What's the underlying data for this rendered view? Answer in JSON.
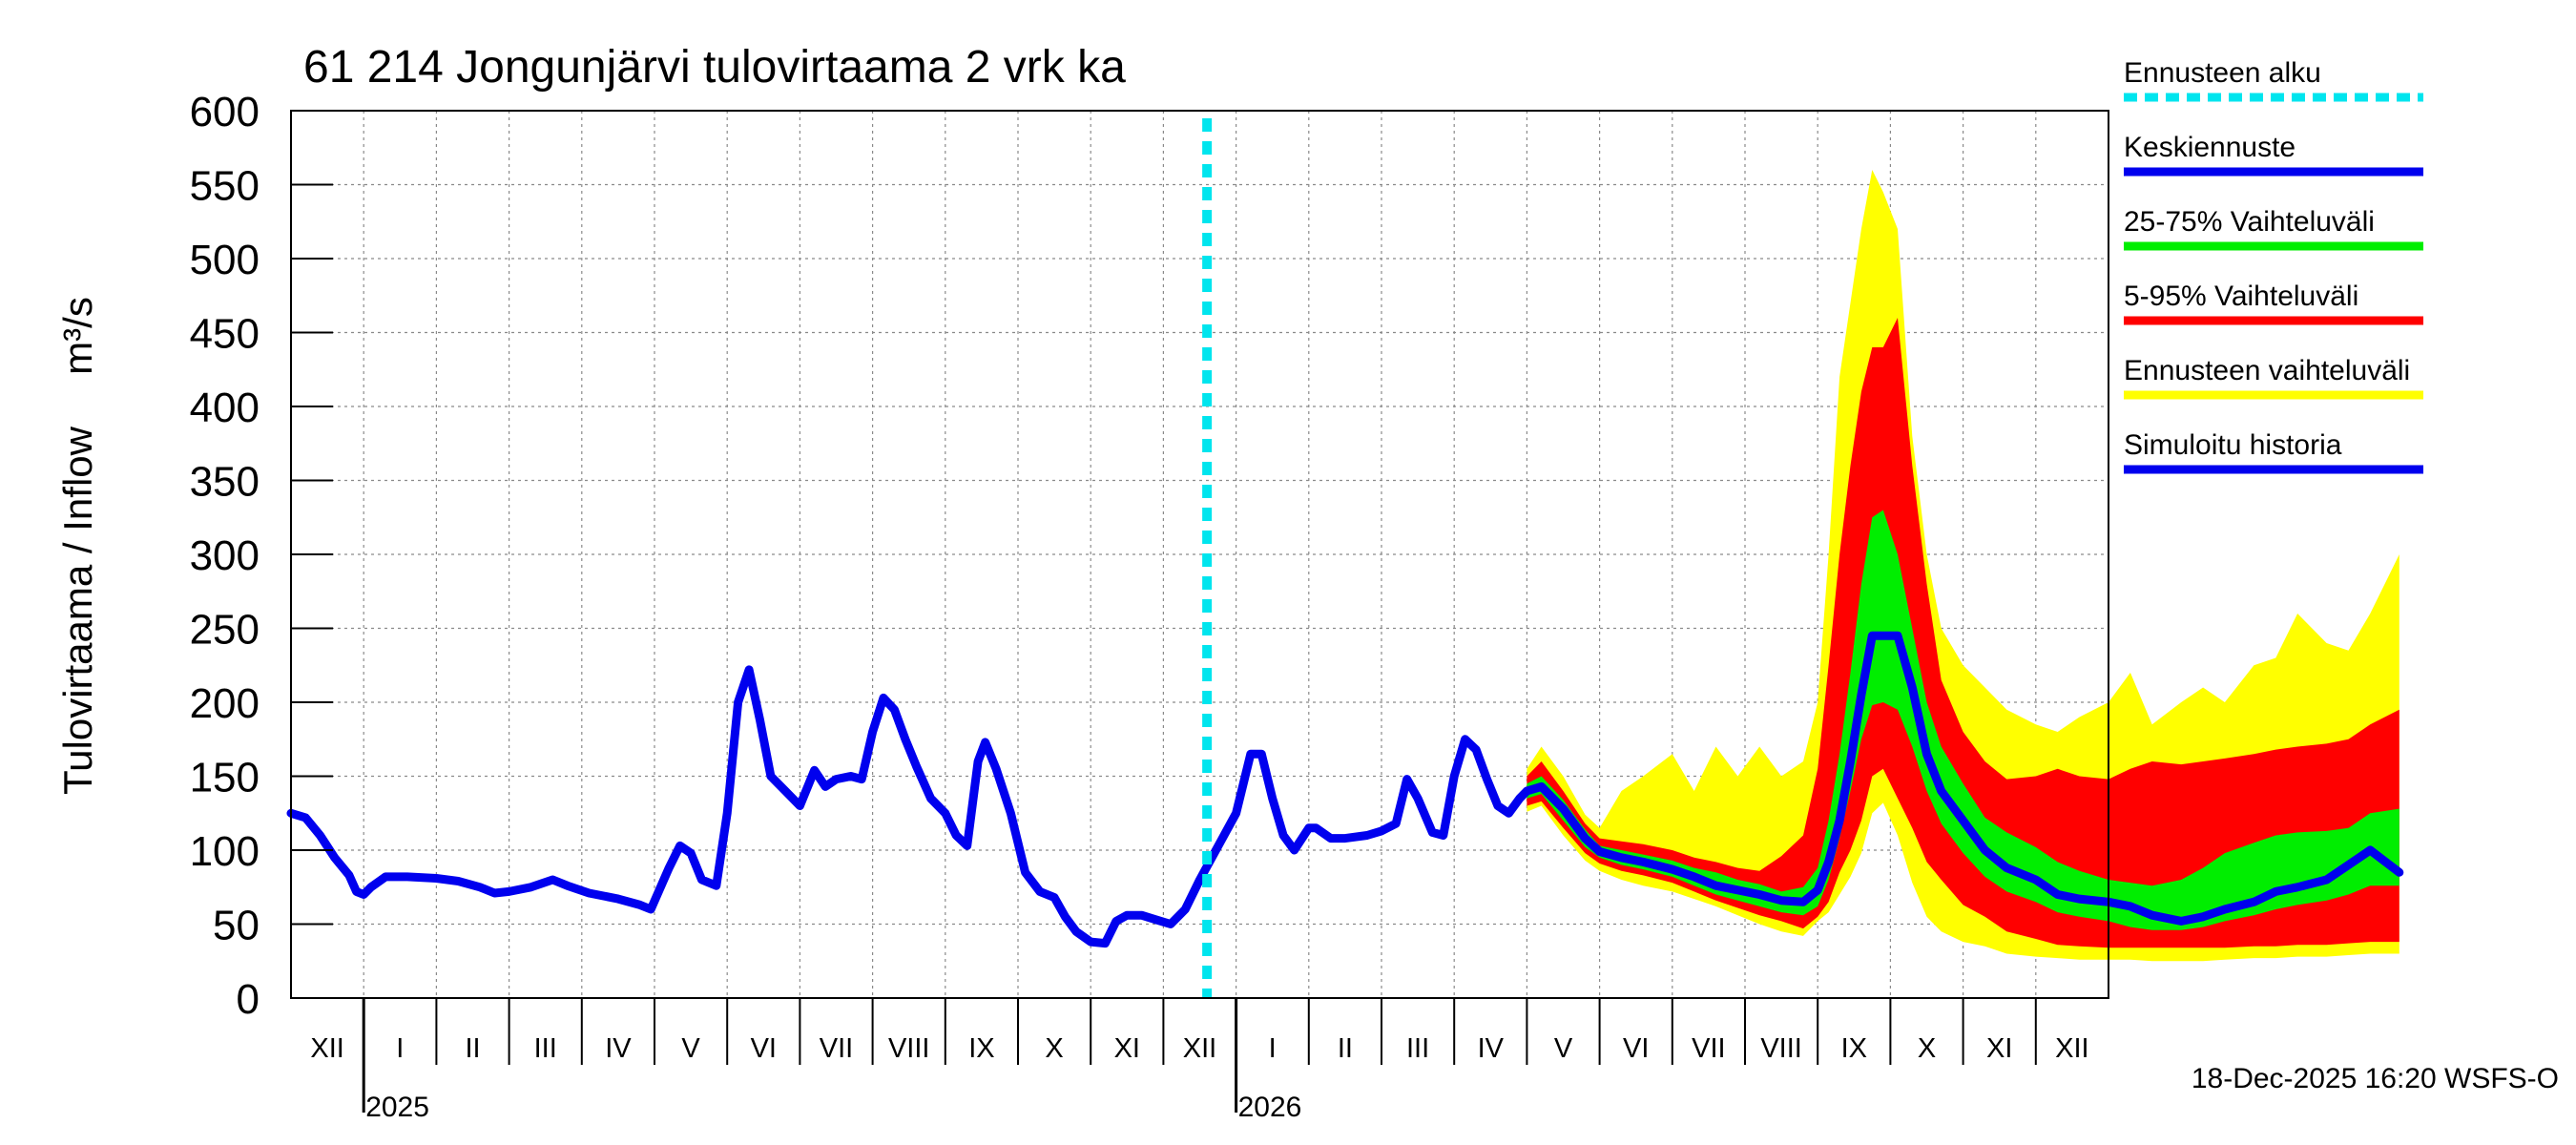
{
  "chart_data": {
    "type": "area",
    "title": "61 214 Jongunjärvi tulovirtaama 2 vrk ka",
    "ylabel": "Tulovirtaama / Inflow",
    "yunit": "m³/s",
    "ylim": [
      0,
      600
    ],
    "yticks": [
      0,
      50,
      100,
      150,
      200,
      250,
      300,
      350,
      400,
      450,
      500,
      550,
      600
    ],
    "grid": "on",
    "x_unit": "months since 2024-12-01",
    "xlim": [
      0,
      25
    ],
    "month_labels": [
      "XII",
      "I",
      "II",
      "III",
      "IV",
      "V",
      "VI",
      "VII",
      "VIII",
      "IX",
      "X",
      "XI",
      "XII",
      "I",
      "II",
      "III",
      "IV",
      "V",
      "VI",
      "VII",
      "VIII",
      "IX",
      "X",
      "XI",
      "XII"
    ],
    "year_labels": [
      {
        "label": "2025",
        "x": 1
      },
      {
        "label": "2026",
        "x": 13
      }
    ],
    "forecast_start": 12.6,
    "timestamp": "18-Dec-2025 16:20 WSFS-O",
    "legend": [
      {
        "label": "Ennusteen alku",
        "color": "#00e5ee",
        "style": "dashed"
      },
      {
        "label": "Keskiennuste",
        "color": "#0000ee",
        "style": "solid"
      },
      {
        "label": "25-75% Vaihteluväli",
        "color": "#00ee00",
        "style": "solid"
      },
      {
        "label": "5-95% Vaihteluväli",
        "color": "#ff0000",
        "style": "solid"
      },
      {
        "label": "Ennusteen vaihteluväli",
        "color": "#ffff00",
        "style": "solid"
      },
      {
        "label": "Simuloitu historia",
        "color": "#0000ee",
        "style": "solid"
      }
    ],
    "history": {
      "name": "Simuloitu historia",
      "color": "#0000ee",
      "points": [
        [
          0,
          125
        ],
        [
          0.2,
          122
        ],
        [
          0.4,
          110
        ],
        [
          0.6,
          95
        ],
        [
          0.8,
          83
        ],
        [
          0.9,
          72
        ],
        [
          1.0,
          70
        ],
        [
          1.1,
          75
        ],
        [
          1.3,
          82
        ],
        [
          1.6,
          82
        ],
        [
          2.0,
          81
        ],
        [
          2.3,
          79
        ],
        [
          2.6,
          75
        ],
        [
          2.8,
          71
        ],
        [
          3.0,
          72
        ],
        [
          3.3,
          75
        ],
        [
          3.6,
          80
        ],
        [
          3.8,
          76
        ],
        [
          4.1,
          71
        ],
        [
          4.5,
          67
        ],
        [
          4.8,
          63
        ],
        [
          4.95,
          60
        ],
        [
          5.2,
          88
        ],
        [
          5.35,
          103
        ],
        [
          5.5,
          98
        ],
        [
          5.65,
          80
        ],
        [
          5.85,
          76
        ],
        [
          6.0,
          125
        ],
        [
          6.15,
          200
        ],
        [
          6.3,
          222
        ],
        [
          6.45,
          188
        ],
        [
          6.6,
          150
        ],
        [
          6.8,
          140
        ],
        [
          7.0,
          130
        ],
        [
          7.2,
          154
        ],
        [
          7.35,
          143
        ],
        [
          7.5,
          148
        ],
        [
          7.7,
          150
        ],
        [
          7.85,
          148
        ],
        [
          8.0,
          180
        ],
        [
          8.15,
          203
        ],
        [
          8.3,
          195
        ],
        [
          8.45,
          175
        ],
        [
          8.6,
          157
        ],
        [
          8.8,
          135
        ],
        [
          9.0,
          125
        ],
        [
          9.15,
          110
        ],
        [
          9.3,
          103
        ],
        [
          9.45,
          160
        ],
        [
          9.55,
          173
        ],
        [
          9.7,
          155
        ],
        [
          9.9,
          125
        ],
        [
          10.1,
          85
        ],
        [
          10.3,
          72
        ],
        [
          10.5,
          68
        ],
        [
          10.65,
          55
        ],
        [
          10.8,
          45
        ],
        [
          11.0,
          38
        ],
        [
          11.2,
          37
        ],
        [
          11.35,
          52
        ],
        [
          11.5,
          56
        ],
        [
          11.7,
          56
        ],
        [
          11.9,
          53
        ],
        [
          12.1,
          50
        ],
        [
          12.3,
          60
        ],
        [
          12.5,
          80
        ],
        [
          12.8,
          107
        ],
        [
          13.0,
          125
        ],
        [
          13.2,
          165
        ],
        [
          13.35,
          165
        ],
        [
          13.5,
          135
        ],
        [
          13.65,
          110
        ],
        [
          13.8,
          100
        ],
        [
          14.0,
          115
        ],
        [
          14.1,
          115
        ],
        [
          14.3,
          108
        ],
        [
          14.5,
          108
        ],
        [
          14.8,
          110
        ],
        [
          15.0,
          113
        ],
        [
          15.2,
          118
        ],
        [
          15.35,
          148
        ],
        [
          15.5,
          135
        ],
        [
          15.7,
          112
        ],
        [
          15.85,
          110
        ],
        [
          16.0,
          150
        ],
        [
          16.15,
          175
        ],
        [
          16.3,
          168
        ],
        [
          16.45,
          148
        ],
        [
          16.6,
          130
        ],
        [
          16.75,
          125
        ],
        [
          16.9,
          135
        ],
        [
          17.0,
          140
        ]
      ]
    },
    "forecast": {
      "x": [
        17.0,
        17.2,
        17.5,
        17.8,
        18.0,
        18.3,
        18.6,
        19.0,
        19.3,
        19.6,
        19.9,
        20.2,
        20.5,
        20.8,
        21.0,
        21.15,
        21.3,
        21.45,
        21.6,
        21.75,
        21.9,
        22.1,
        22.3,
        22.5,
        22.7,
        23.0,
        23.3,
        23.6,
        24.0,
        24.3,
        24.6,
        25.0,
        25.3,
        25.6,
        26.0,
        26.3,
        26.6,
        27.0,
        27.3,
        27.6,
        28.0,
        28.3,
        28.6,
        29.0
      ],
      "median": [
        140,
        143,
        128,
        108,
        99,
        95,
        92,
        87,
        82,
        76,
        73,
        70,
        66,
        65,
        73,
        92,
        120,
        160,
        205,
        245,
        245,
        245,
        210,
        165,
        140,
        120,
        100,
        88,
        80,
        70,
        67,
        65,
        62,
        56,
        52,
        55,
        60,
        65,
        72,
        75,
        80,
        90,
        100,
        85
      ],
      "p25": [
        135,
        138,
        120,
        102,
        95,
        90,
        87,
        82,
        76,
        70,
        66,
        62,
        58,
        56,
        62,
        80,
        108,
        140,
        175,
        198,
        200,
        195,
        170,
        140,
        118,
        98,
        82,
        72,
        65,
        58,
        55,
        52,
        48,
        46,
        46,
        48,
        52,
        56,
        60,
        63,
        66,
        70,
        76,
        76
      ],
      "p75": [
        145,
        150,
        134,
        114,
        103,
        100,
        97,
        93,
        88,
        85,
        80,
        77,
        72,
        75,
        88,
        120,
        165,
        220,
        280,
        325,
        330,
        300,
        250,
        200,
        170,
        145,
        122,
        112,
        102,
        92,
        86,
        80,
        78,
        76,
        80,
        88,
        98,
        105,
        110,
        112,
        113,
        115,
        125,
        128
      ],
      "p5": [
        130,
        133,
        115,
        98,
        91,
        86,
        83,
        78,
        72,
        66,
        61,
        56,
        52,
        47,
        55,
        65,
        85,
        100,
        120,
        150,
        155,
        135,
        115,
        92,
        80,
        63,
        55,
        45,
        40,
        36,
        35,
        34,
        34,
        34,
        34,
        34,
        34,
        35,
        35,
        36,
        36,
        37,
        38,
        38
      ],
      "p95": [
        150,
        160,
        140,
        118,
        108,
        106,
        104,
        100,
        95,
        92,
        88,
        86,
        96,
        110,
        155,
        225,
        300,
        360,
        410,
        440,
        440,
        460,
        360,
        280,
        215,
        180,
        160,
        148,
        150,
        155,
        150,
        148,
        155,
        160,
        158,
        160,
        162,
        165,
        168,
        170,
        172,
        175,
        185,
        195
      ],
      "min": [
        126,
        130,
        110,
        93,
        86,
        80,
        76,
        72,
        67,
        62,
        56,
        50,
        45,
        42,
        52,
        58,
        70,
        82,
        98,
        125,
        132,
        110,
        78,
        55,
        45,
        38,
        35,
        30,
        28,
        27,
        26,
        26,
        26,
        25,
        25,
        25,
        26,
        27,
        27,
        28,
        28,
        29,
        30,
        30
      ],
      "max": [
        155,
        170,
        150,
        124,
        115,
        140,
        150,
        165,
        140,
        170,
        150,
        170,
        150,
        160,
        200,
        300,
        420,
        470,
        520,
        560,
        545,
        520,
        380,
        300,
        250,
        225,
        210,
        195,
        185,
        180,
        190,
        200,
        220,
        185,
        200,
        210,
        200,
        225,
        230,
        260,
        240,
        235,
        260,
        300
      ]
    }
  }
}
